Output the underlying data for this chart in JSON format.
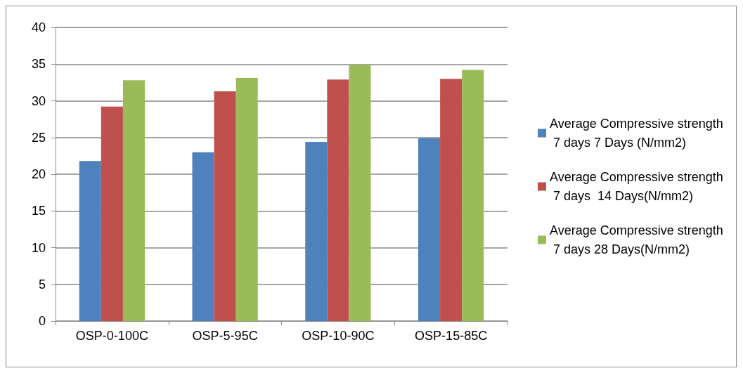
{
  "chart_data": {
    "type": "bar",
    "categories": [
      "OSP-0-100C",
      "OSP-5-95C",
      "OSP-10-90C",
      "OSP-15-85C"
    ],
    "series": [
      {
        "name": "Average Compressive strength 7 days 7 Days (N/mm2)",
        "color": "#4f81bd",
        "values": [
          21.8,
          23.0,
          24.4,
          24.9
        ]
      },
      {
        "name": "Average Compressive strength 7 days  14 Days(N/mm2)",
        "color": "#c0504d",
        "values": [
          29.2,
          31.3,
          32.9,
          33.0
        ]
      },
      {
        "name": "Average Compressive strength 7 days 28 Days(N/mm2)",
        "color": "#9bbb59",
        "values": [
          32.8,
          33.1,
          34.9,
          34.2
        ]
      }
    ],
    "ylim": [
      0,
      40
    ],
    "yticks": [
      0,
      5,
      10,
      15,
      20,
      25,
      30,
      35,
      40
    ],
    "grid": "y",
    "legend": "right"
  }
}
